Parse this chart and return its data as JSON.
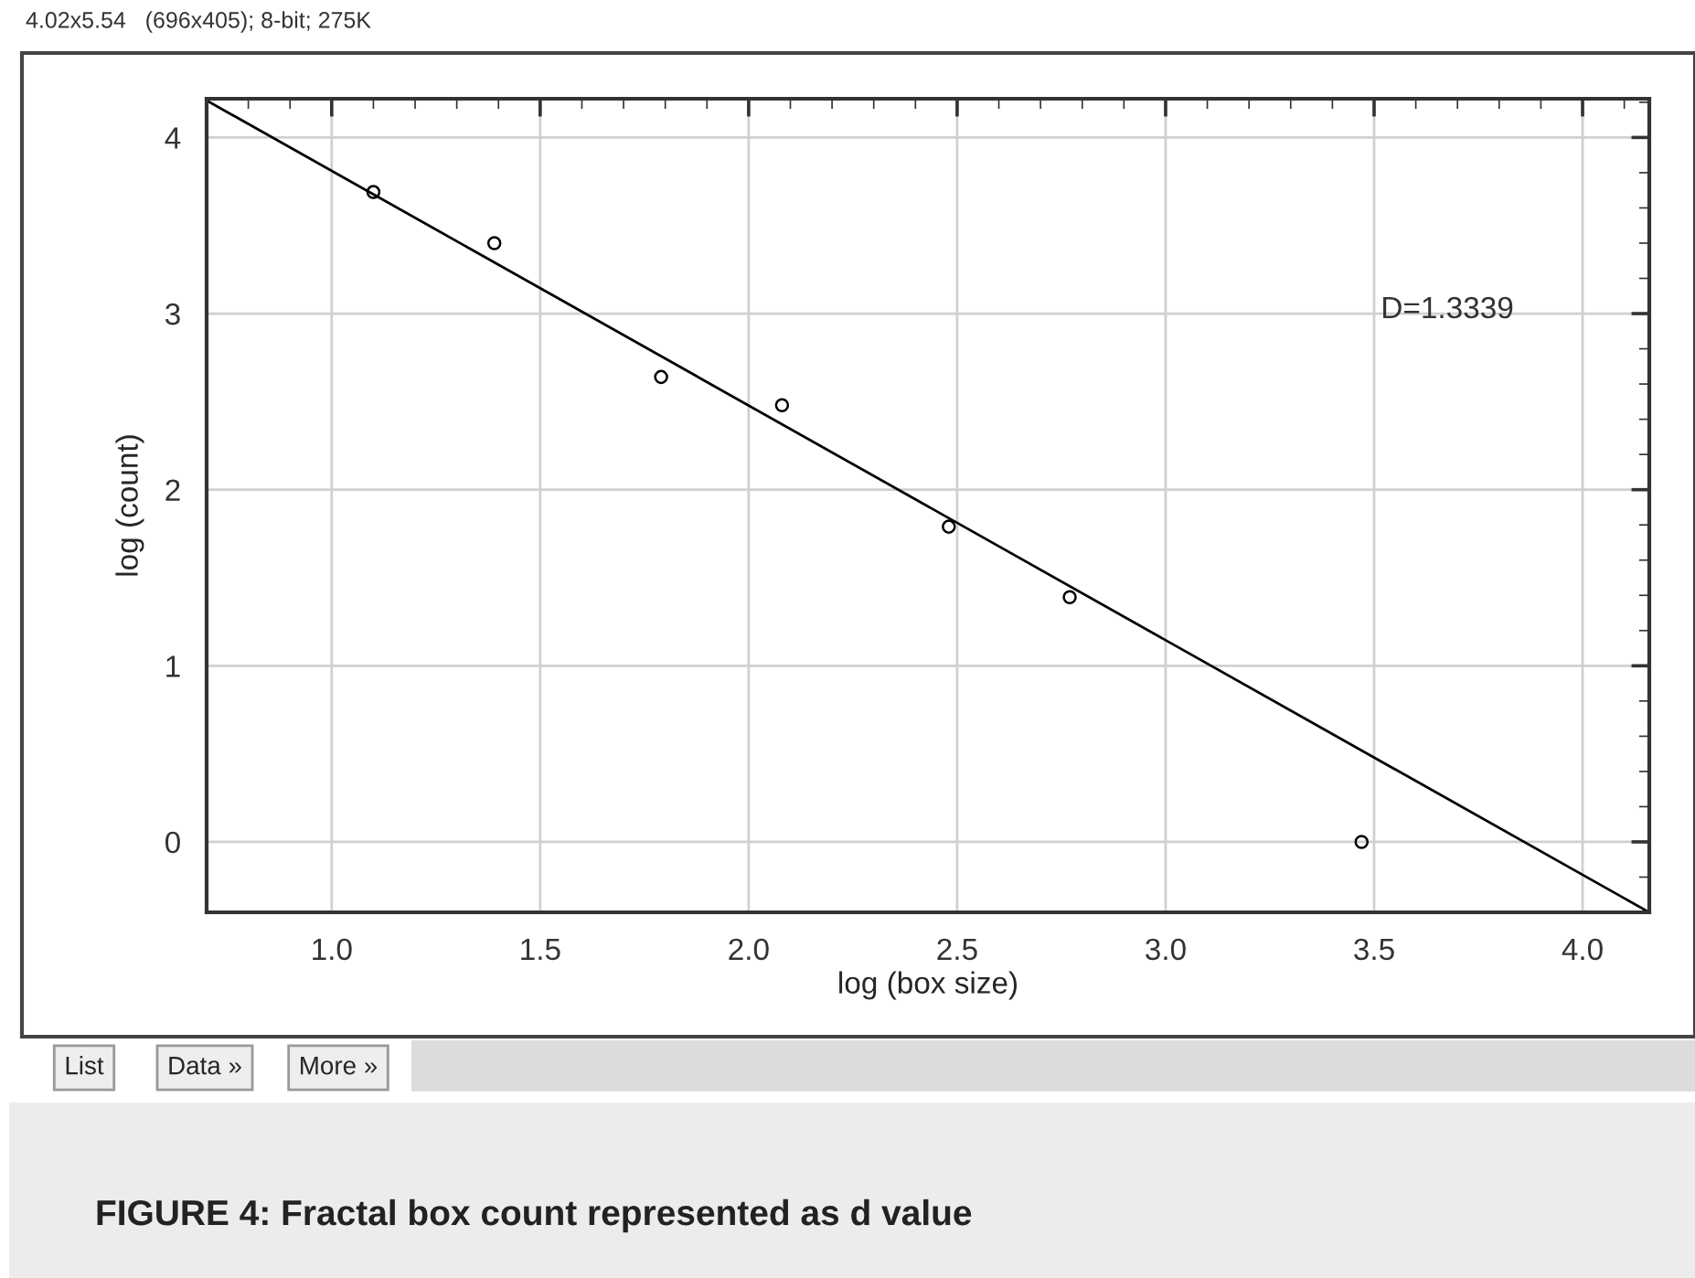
{
  "chart_data": {
    "type": "scatter",
    "xlabel": "log (box size)",
    "ylabel": "log (count)",
    "series": [
      {
        "marker": "circle",
        "color": "#000000",
        "x": [
          1.1,
          1.39,
          1.79,
          2.08,
          2.48,
          2.77,
          3.47
        ],
        "values": [
          3.69,
          3.4,
          2.64,
          2.48,
          1.79,
          1.39,
          0.0
        ]
      },
      {
        "type": "line",
        "marker": "none",
        "color": "#000000",
        "x": [
          0.7,
          4.16
        ],
        "values": [
          4.21,
          -0.4
        ]
      }
    ],
    "xlim": [
      0.7,
      4.16
    ],
    "ylim": [
      -0.4,
      4.22
    ],
    "xticks": [
      {
        "value": 1.0,
        "label": "1.0"
      },
      {
        "value": 1.5,
        "label": "1.5"
      },
      {
        "value": 2.0,
        "label": "2.0"
      },
      {
        "value": 2.5,
        "label": "2.5"
      },
      {
        "value": 3.0,
        "label": "3.0"
      },
      {
        "value": 3.5,
        "label": "3.5"
      },
      {
        "value": 4.0,
        "label": "4.0"
      }
    ],
    "yticks": [
      0,
      1,
      2,
      3,
      4
    ],
    "grid": true,
    "line_style": "solid",
    "legend": false,
    "annotations": [
      "4.02x5.54   (696x405); 8-bit; 275K",
      "D=1.3339",
      "List",
      "Data »",
      "More »",
      "FIGURE 4: Fractal box count represented as d value"
    ]
  }
}
